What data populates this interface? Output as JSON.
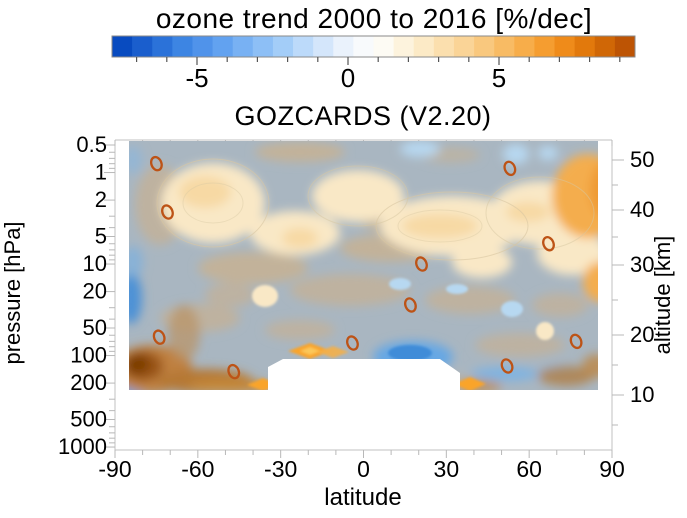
{
  "colorbar": {
    "title": "ozone trend 2000 to 2016 [%/dec]",
    "tick_labels": [
      "-5",
      "0",
      "5"
    ],
    "segments": [
      "#084bc0",
      "#1a5ecd",
      "#2b72d9",
      "#3d85e3",
      "#5093ea",
      "#62a2f0",
      "#78b1f3",
      "#8dbff6",
      "#a3cdf8",
      "#bcdafa",
      "#d4e6fb",
      "#eaf2fc",
      "#f8fafc",
      "#fdfbf4",
      "#fdf3dd",
      "#fceac6",
      "#fbdfae",
      "#fad497",
      "#f9c87e",
      "#f8bb64",
      "#f7ad4a",
      "#f59d30",
      "#ef8b1a",
      "#e2790c",
      "#d06706",
      "#bd5404"
    ]
  },
  "plot": {
    "title": "GOZCARDS (V2.20)",
    "x_label": "latitude",
    "y_left_label": "pressure [hPa]",
    "y_right_label": "altitude [km]",
    "x_tick_labels": [
      "-90",
      "-60",
      "-30",
      "0",
      "30",
      "60",
      "90"
    ],
    "y_left_tick_labels": [
      "0.5",
      "1",
      "2",
      "5",
      "10",
      "20",
      "50",
      "100",
      "200",
      "500",
      "1000"
    ],
    "y_right_tick_labels": [
      "50",
      "40",
      "30",
      "20",
      "10"
    ]
  },
  "key_colors": {
    "colorbar_min_blue": "#084bc0",
    "colorbar_zero_white": "#fdfcf6",
    "colorbar_max_orange": "#bd5404",
    "field_weak_negative_gray_blue": "#a9b6c1",
    "field_weak_positive_tan": "#c2b29a",
    "field_positive_cream": "#f9e8c6",
    "field_strong_positive_brown": "#7d3d06",
    "significance_marker": "#bd5316"
  },
  "chart_data": {
    "type": "heatmap",
    "subtype": "filled-contour latitude-pressure cross-section",
    "title": "GOZCARDS (V2.20)",
    "colorbar_title": "ozone trend 2000 to 2016 [%/dec]",
    "units": "%/dec",
    "xlabel": "latitude",
    "x_range": [
      -90,
      90
    ],
    "x_ticks": [
      -90,
      -60,
      -30,
      0,
      30,
      60,
      90
    ],
    "ylabel_left": "pressure [hPa]",
    "y_scale": "log",
    "y_ticks_pressure_hPa": [
      0.5,
      1,
      2,
      5,
      10,
      20,
      50,
      100,
      200,
      500,
      1000
    ],
    "ylabel_right": "altitude [km]",
    "y_ticks_altitude_km": [
      50,
      40,
      30,
      20,
      10
    ],
    "colorbar_ticks": [
      -5,
      0,
      5
    ],
    "colorbar_range_approx": [
      -7.8,
      9.5
    ],
    "colorbar_n_segments": 26,
    "data_extent": {
      "latitude": [
        -85,
        85
      ],
      "pressure_hPa_top": 0.5,
      "pressure_hPa_bottom_extratropics": 215,
      "pressure_hPa_bottom_tropics": 100
    },
    "features": [
      {
        "region": "upper stratosphere ~1-5 hPa, 60S-60N band",
        "trend_pct_per_dec": 1.5
      },
      {
        "region": "upper stratosphere 50-90N (top-right)",
        "trend_pct_per_dec": 3
      },
      {
        "region": "middle stratosphere 10-50 hPa, most latitudes",
        "trend_pct_per_dec": -0.5
      },
      {
        "region": "SH polar lowermost stratosphere ~80S, 100-200 hPa",
        "trend_pct_per_dec": 7
      },
      {
        "region": "tropical/NH subtropical ~70-100 hPa",
        "trend_pct_per_dec": -3.5
      },
      {
        "region": "scattered patches near 0.5-1 hPa, 10-30N",
        "trend_pct_per_dec": -2
      }
    ],
    "significance_markers_lat_hPa": [
      [
        -75,
        0.8
      ],
      [
        -71,
        2.7
      ],
      [
        53,
        0.9
      ],
      [
        67,
        6
      ],
      [
        21,
        10
      ],
      [
        17,
        28
      ],
      [
        -74,
        63
      ],
      [
        -47,
        150
      ],
      [
        -4,
        73
      ],
      [
        77,
        70
      ],
      [
        52,
        130
      ]
    ]
  }
}
